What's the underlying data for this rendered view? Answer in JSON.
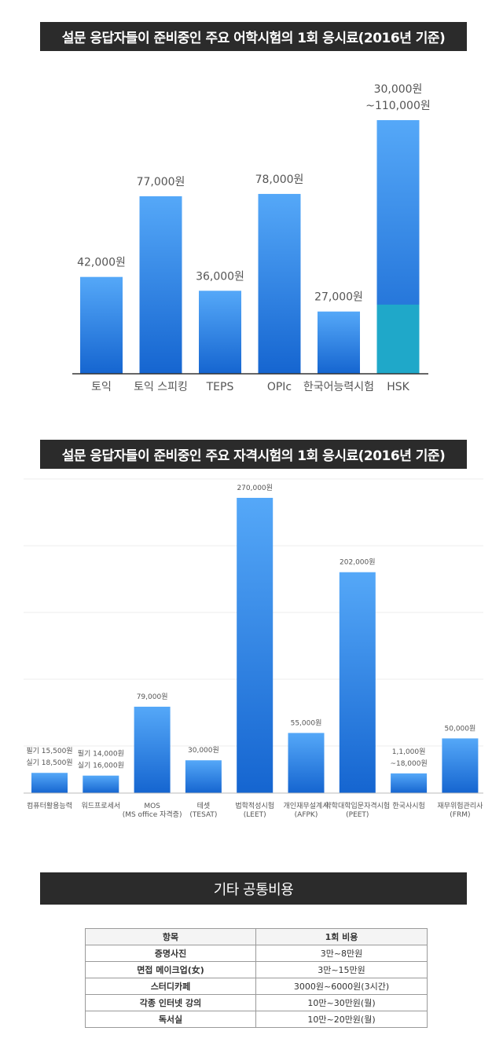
{
  "charts": {
    "language": {
      "title": "설문 응답자들이 준비중인 주요 어학시험의 1회 응시료(2016년 기준)"
    },
    "certification": {
      "title": "설문 응답자들이 준비중인 주요 자격시험의 1회 응시료(2016년 기준)"
    }
  },
  "chart_data": [
    {
      "type": "bar",
      "title": "설문 응답자들이 준비중인 주요 어학시험의 1회 응시료(2016년 기준)",
      "categories": [
        "토익",
        "토익 스피킹",
        "TEPS",
        "OPIc",
        "한국어능력시험",
        "HSK"
      ],
      "values": [
        42000,
        77000,
        36000,
        78000,
        27000,
        110000
      ],
      "value_labels": [
        [
          "42,000원"
        ],
        [
          "77,000원"
        ],
        [
          "36,000원"
        ],
        [
          "78,000원"
        ],
        [
          "27,000원"
        ],
        [
          "30,000원",
          "~110,000원"
        ]
      ],
      "range_low": [
        null,
        null,
        null,
        null,
        null,
        30000
      ],
      "ylim": [
        0,
        110000
      ],
      "grid": false,
      "colors": {
        "bar_top": "#55a8f8",
        "bar_bottom": "#1565d0",
        "range": "#1fa8c9"
      }
    },
    {
      "type": "bar",
      "title": "설문 응답자들이 준비중인 주요 자격시험의 1회 응시료(2016년 기준)",
      "categories": [
        [
          "컴퓨터활용능력"
        ],
        [
          "워드프로세서"
        ],
        [
          "MOS",
          "(MS office 자격증)"
        ],
        [
          "테셋",
          "(TESAT)"
        ],
        [
          "법학적성시험",
          "(LEET)"
        ],
        [
          "개인재무설계사",
          "(AFPK)"
        ],
        [
          "약학대학입문자격시험",
          "(PEET)"
        ],
        [
          "한국사시험"
        ],
        [
          "재무위험관리사",
          "(FRM)"
        ]
      ],
      "values": [
        18500,
        16000,
        79000,
        30000,
        270000,
        55000,
        202000,
        18000,
        50000
      ],
      "value_labels": [
        [
          "필기 15,500원",
          "실기 18,500원"
        ],
        [
          "필기 14,000원",
          "실기 16,000원"
        ],
        [
          "79,000원"
        ],
        [
          "30,000원"
        ],
        [
          "270,000원"
        ],
        [
          "55,000원"
        ],
        [
          "202,000원"
        ],
        [
          "1,1,000원",
          "~18,000원"
        ],
        [
          "50,000원"
        ]
      ],
      "ylim": [
        0,
        270000
      ],
      "grid": true,
      "colors": {
        "bar_top": "#55a8f8",
        "bar_bottom": "#1565d0"
      }
    }
  ],
  "common_costs": {
    "title": "기타 공통비용",
    "headers": [
      "항목",
      "1회 비용"
    ],
    "rows": [
      {
        "item": "증명사진",
        "cost": "3만~8만원"
      },
      {
        "item": "면접 메이크업(女)",
        "cost": "3만~15만원"
      },
      {
        "item": "스터디카페",
        "cost": "3000원~6000원(3시간)"
      },
      {
        "item": "각종 인터넷 강의",
        "cost": "10만~30만원(월)"
      },
      {
        "item": "독서실",
        "cost": "10만~20만원(월)"
      }
    ]
  }
}
